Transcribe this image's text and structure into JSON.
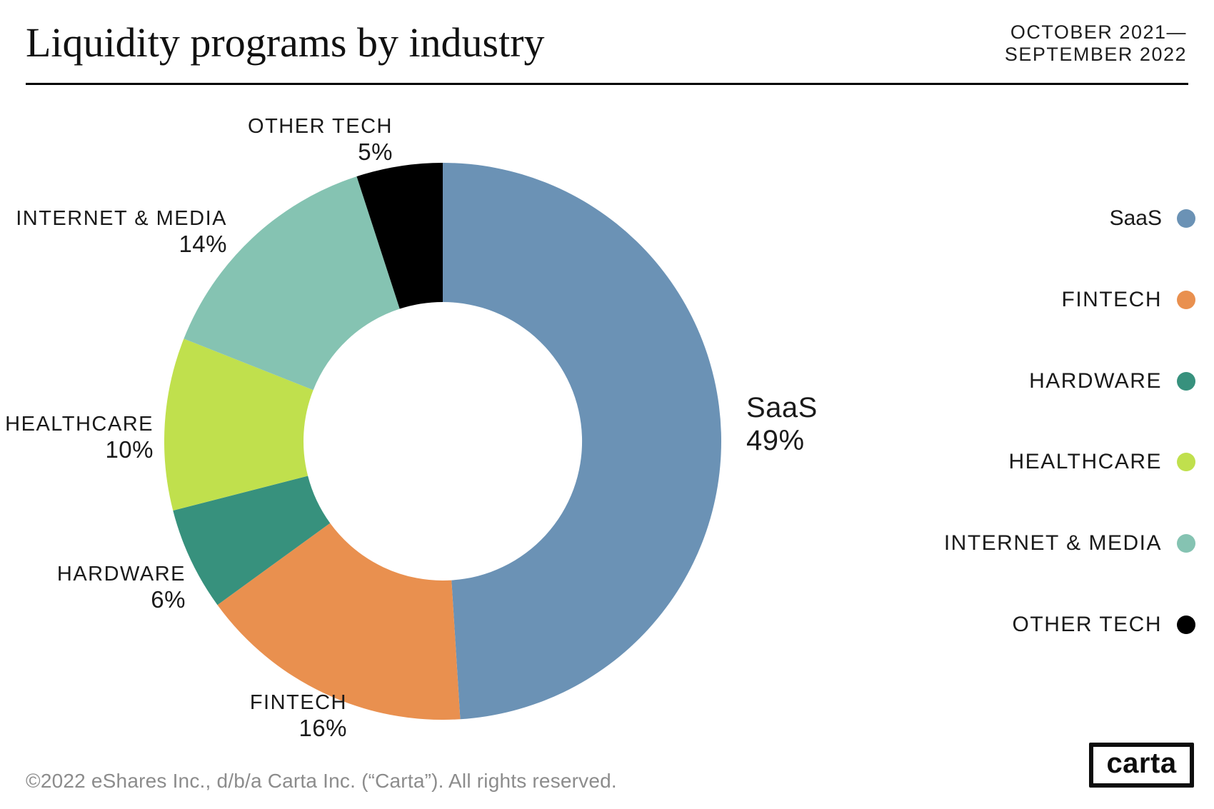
{
  "header": {
    "title": "Liquidity programs by industry",
    "date_range": [
      "OCTOBER 2021—",
      "SEPTEMBER 2022"
    ]
  },
  "chart_data": {
    "type": "pie",
    "variant": "donut",
    "title": "Liquidity programs by industry",
    "period": "October 2021—September 2022",
    "direction": "clockwise",
    "start_angle_deg": 0,
    "inner_radius_ratio": 0.5,
    "legend_position": "right",
    "slices": [
      {
        "label": "SaaS",
        "value": 49,
        "pct_label": "49%",
        "color": "#6b92b5"
      },
      {
        "label": "FINTECH",
        "value": 16,
        "pct_label": "16%",
        "color": "#e9904f"
      },
      {
        "label": "HARDWARE",
        "value": 6,
        "pct_label": "6%",
        "color": "#37917d"
      },
      {
        "label": "HEALTHCARE",
        "value": 10,
        "pct_label": "10%",
        "color": "#c0e04d"
      },
      {
        "label": "INTERNET & MEDIA",
        "value": 14,
        "pct_label": "14%",
        "color": "#85c3b2"
      },
      {
        "label": "OTHER TECH",
        "value": 5,
        "pct_label": "5%",
        "color": "#000000"
      }
    ]
  },
  "footer": {
    "copyright": "©2022 eShares Inc., d/b/a Carta Inc. (“Carta”). All rights reserved.",
    "logo_text": "carta"
  }
}
